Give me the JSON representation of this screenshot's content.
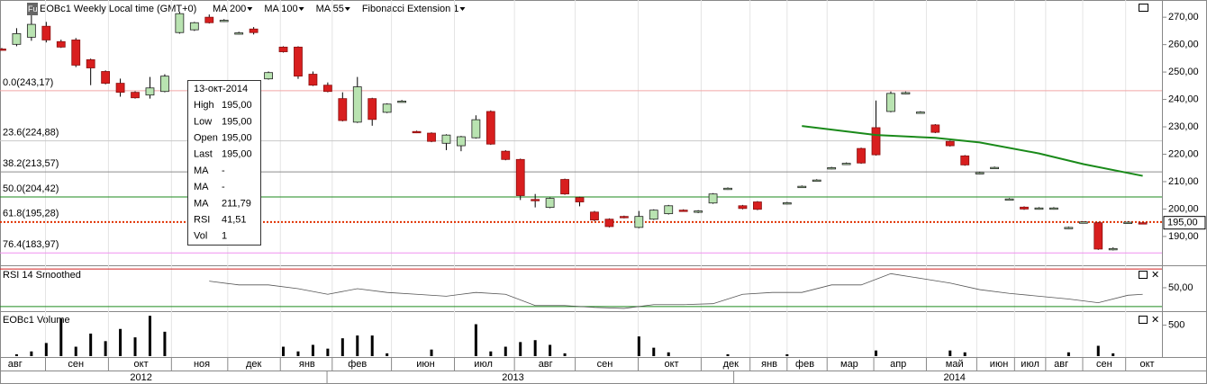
{
  "chart_data": {
    "type": "candlestick",
    "badge": "Fu",
    "title": "EOBc1 Weekly Local time (GMT+0)",
    "indicators": [
      {
        "name": "MA 200",
        "color": "#1a3fd0"
      },
      {
        "name": "MA 100",
        "color": "#d02020"
      },
      {
        "name": "MA 55",
        "color": "#1a8a1a"
      },
      {
        "name": "Fibonacci Extension 1",
        "color": "#000000"
      }
    ],
    "xlim": [
      -0.12,
      78.3
    ],
    "ylim": [
      179.8,
      275.3
    ],
    "yticks": [
      {
        "value": 190,
        "label": "190,00"
      },
      {
        "value": 200,
        "label": "200,00"
      },
      {
        "value": 210,
        "label": "210,00"
      },
      {
        "value": 220,
        "label": "220,00"
      },
      {
        "value": 230,
        "label": "230,00"
      },
      {
        "value": 240,
        "label": "240,00"
      },
      {
        "value": 250,
        "label": "250,00"
      },
      {
        "value": 260,
        "label": "260,00"
      },
      {
        "value": 270,
        "label": "270,00"
      }
    ],
    "last_price": {
      "value": 195,
      "label": "195,00"
    },
    "x": [
      0,
      1,
      2,
      3,
      4,
      5,
      6,
      7,
      8,
      9,
      10,
      11,
      12,
      13,
      14,
      15,
      16,
      17,
      18,
      19,
      20,
      21,
      22,
      23,
      24,
      25,
      26,
      27,
      28,
      29,
      30,
      31,
      32,
      33,
      34,
      35,
      36,
      37,
      38,
      39,
      40,
      41,
      42,
      43,
      44,
      45,
      46,
      47,
      48,
      49,
      50,
      51,
      53,
      54,
      55,
      56,
      57,
      58,
      59,
      60,
      61,
      62,
      63,
      64,
      65,
      66,
      67,
      68,
      69,
      70,
      71,
      72,
      73,
      74,
      75,
      76,
      77
    ],
    "open": [
      258.4,
      260.1,
      262.7,
      266.7,
      261.1,
      261.7,
      254.5,
      250.2,
      245.9,
      242.6,
      241.6,
      242.9,
      264.4,
      265.4,
      270.0,
      268.5,
      264.0,
      265.7,
      247.5,
      259.1,
      259.1,
      249.2,
      245.2,
      240.3,
      231.7,
      240.3,
      235.3,
      239.1,
      228.3,
      227.7,
      224.0,
      223.1,
      226.0,
      235.6,
      221.1,
      218.1,
      203.5,
      200.6,
      210.8,
      204.2,
      198.9,
      196.3,
      197.3,
      193.3,
      196.3,
      198.3,
      199.6,
      198.8,
      202.2,
      207.3,
      201.2,
      202.6,
      202.0,
      208.0,
      210.3,
      214.8,
      216.4,
      222.1,
      229.7,
      235.6,
      242.2,
      235.1,
      230.7,
      224.7,
      219.4,
      213.0,
      214.9,
      203.4,
      200.7,
      200.1,
      200.1,
      193.0,
      195.1,
      195.0,
      185.2,
      194.9,
      195.0
    ],
    "high": [
      258.8,
      266.0,
      270.7,
      268.3,
      261.8,
      262.4,
      254.9,
      250.6,
      247.6,
      243.0,
      248.2,
      249.2,
      272.0,
      268.3,
      271.0,
      269.3,
      264.7,
      266.4,
      250.2,
      259.4,
      259.4,
      250.2,
      246.2,
      242.6,
      248.2,
      240.6,
      238.6,
      239.8,
      228.6,
      228.0,
      227.3,
      226.7,
      234.2,
      236.0,
      221.5,
      218.4,
      205.5,
      204.2,
      211.1,
      204.5,
      199.3,
      196.6,
      197.6,
      199.3,
      199.9,
      201.5,
      199.9,
      199.6,
      205.8,
      207.9,
      201.5,
      202.9,
      202.6,
      208.6,
      210.9,
      215.4,
      217.0,
      222.4,
      239.6,
      242.9,
      242.9,
      235.7,
      231.0,
      225.0,
      219.7,
      213.6,
      215.5,
      204.0,
      201.0,
      200.7,
      200.7,
      193.6,
      195.5,
      195.3,
      186.0,
      195.5,
      195.0
    ],
    "low": [
      258.0,
      259.4,
      261.4,
      260.8,
      258.8,
      251.8,
      245.2,
      245.5,
      241.0,
      240.3,
      240.3,
      242.6,
      264.0,
      265.0,
      267.7,
      268.3,
      263.7,
      263.7,
      247.2,
      257.1,
      247.5,
      244.9,
      242.6,
      232.0,
      231.4,
      230.4,
      235.0,
      238.9,
      227.7,
      224.4,
      221.5,
      221.1,
      225.7,
      223.4,
      217.8,
      203.3,
      200.6,
      200.3,
      205.2,
      201.0,
      195.6,
      193.3,
      196.6,
      193.0,
      196.0,
      198.0,
      199.0,
      198.5,
      201.9,
      207.0,
      199.9,
      199.6,
      201.7,
      207.7,
      210.0,
      214.5,
      216.1,
      216.5,
      219.5,
      235.3,
      241.9,
      234.8,
      227.7,
      222.8,
      215.8,
      212.7,
      214.6,
      203.1,
      199.7,
      199.8,
      199.8,
      192.7,
      194.9,
      185.1,
      184.9,
      194.6,
      195.0
    ],
    "close": [
      258.4,
      264.0,
      267.4,
      261.7,
      259.1,
      252.5,
      251.5,
      245.9,
      242.6,
      240.6,
      244.2,
      248.5,
      271.3,
      268.0,
      268.0,
      268.9,
      264.3,
      264.4,
      249.8,
      257.4,
      248.5,
      245.2,
      242.9,
      232.3,
      244.6,
      232.7,
      238.3,
      239.4,
      228.0,
      224.7,
      227.0,
      226.4,
      232.6,
      223.7,
      218.1,
      204.9,
      203.2,
      203.9,
      205.5,
      202.6,
      196.0,
      193.6,
      197.0,
      197.3,
      199.6,
      201.2,
      199.3,
      199.3,
      205.5,
      207.6,
      200.2,
      199.9,
      202.3,
      208.3,
      210.6,
      215.1,
      216.7,
      216.8,
      219.8,
      242.2,
      242.5,
      235.4,
      228.0,
      223.1,
      216.1,
      213.3,
      215.2,
      203.7,
      200.0,
      200.4,
      200.4,
      193.3,
      195.3,
      185.4,
      185.6,
      195.2,
      195.0
    ],
    "up_color": "#b9e3b1",
    "down_color": "#d81e1e",
    "ma55": {
      "color": "#1a8a1a",
      "x": [
        54,
        59,
        63,
        66,
        70,
        73,
        77
      ],
      "values": [
        230.3,
        227.0,
        226.0,
        224.3,
        220.3,
        216.4,
        212.1
      ]
    },
    "fibonacci": [
      {
        "label": "0.0(243,17)",
        "value": 243.17,
        "color": "#e04848",
        "line": "#f2a8a8"
      },
      {
        "label": "23.6(224,88)",
        "value": 224.88,
        "color": "#b07a7a",
        "line": "#c8c8c8"
      },
      {
        "label": "38.2(213,57)",
        "value": 213.57,
        "color": "#000000",
        "line": "#8c8c8c"
      },
      {
        "label": "50.0(204,42)",
        "value": 204.42,
        "color": "#1e8a1e",
        "line": "#1e8a1e"
      },
      {
        "label": "61.8(195,28)",
        "value": 195.28,
        "color": "#e09a20",
        "line": "#e03000"
      },
      {
        "label": "76.4(183,97)",
        "value": 183.97,
        "color": "#c020c0",
        "line": "#f090f0"
      }
    ],
    "tooltip": {
      "date": "13-окт-2014",
      "rows": [
        {
          "label": "High",
          "value": "195,00",
          "color": "#000000"
        },
        {
          "label": "Low",
          "value": "195,00",
          "color": "#000000"
        },
        {
          "label": "Open",
          "value": "195,00",
          "color": "#000000"
        },
        {
          "label": "Last",
          "value": "195,00",
          "color": "#000000"
        },
        {
          "label": "MA",
          "value": "-",
          "color": "#1a3fd0"
        },
        {
          "label": "MA",
          "value": "-",
          "color": "#d02020"
        },
        {
          "label": "MA",
          "value": "211,79",
          "color": "#1a8a1a"
        },
        {
          "label": "RSI",
          "value": "41,51",
          "color": "#000000"
        },
        {
          "label": "Vol",
          "value": "1",
          "color": "#000000"
        }
      ]
    },
    "rsi": {
      "title": "RSI 14 Smoothed",
      "ylim": [
        26,
        72
      ],
      "yticks": [
        {
          "value": 50,
          "label": "50,00"
        }
      ],
      "levels": [
        30,
        70
      ],
      "x": [
        14,
        16,
        18,
        20,
        22,
        24,
        26,
        28,
        30,
        32,
        34,
        36,
        38,
        40,
        42,
        44,
        46,
        48,
        50,
        52,
        54,
        56,
        58,
        60,
        62,
        64,
        66,
        68,
        70,
        72,
        74,
        76,
        77
      ],
      "values": [
        57,
        53,
        53,
        49,
        43,
        49,
        45,
        43,
        41,
        45,
        43,
        31,
        31,
        29,
        28,
        32,
        32,
        33,
        43,
        45,
        45,
        53,
        53,
        65,
        60,
        55,
        48,
        44,
        41,
        38,
        34,
        42,
        43
      ]
    },
    "volume": {
      "title": "EOBc1 Volume",
      "ylim": [
        0,
        697
      ],
      "yticks": [
        500
      ],
      "x": [
        1,
        2,
        3,
        4,
        5,
        6,
        7,
        8,
        9,
        10,
        11,
        19,
        20,
        21,
        22,
        23,
        24,
        25,
        26,
        29,
        32,
        33,
        34,
        35,
        36,
        37,
        38,
        43,
        44,
        45,
        49,
        53,
        59,
        64,
        65,
        72,
        74,
        75
      ],
      "values": [
        30,
        76,
        212,
        606,
        152,
        364,
        242,
        439,
        303,
        651,
        394,
        152,
        76,
        182,
        121,
        288,
        333,
        333,
        45,
        106,
        515,
        76,
        152,
        227,
        258,
        182,
        45,
        318,
        136,
        61,
        30,
        30,
        91,
        91,
        61,
        61,
        167,
        45
      ]
    },
    "xticks": [
      {
        "value": 0.9,
        "label": "авг"
      },
      {
        "value": 5.0,
        "label": "сен"
      },
      {
        "value": 9.4,
        "label": "окт"
      },
      {
        "value": 13.5,
        "label": "ноя"
      },
      {
        "value": 17.0,
        "label": "дек"
      },
      {
        "value": 20.6,
        "label": "янв"
      },
      {
        "value": 24.0,
        "label": "фев"
      },
      {
        "value": 28.6,
        "label": "июн"
      },
      {
        "value": 32.5,
        "label": "июл"
      },
      {
        "value": 36.7,
        "label": "авг"
      },
      {
        "value": 40.7,
        "label": "сен"
      },
      {
        "value": 45.2,
        "label": "окт"
      },
      {
        "value": 49.2,
        "label": "дек"
      },
      {
        "value": 51.8,
        "label": "янв"
      },
      {
        "value": 54.2,
        "label": "фев"
      },
      {
        "value": 57.2,
        "label": "мар"
      },
      {
        "value": 60.5,
        "label": "апр"
      },
      {
        "value": 64.3,
        "label": "май"
      },
      {
        "value": 67.3,
        "label": "июн"
      },
      {
        "value": 69.4,
        "label": "июл"
      },
      {
        "value": 71.5,
        "label": "авг"
      },
      {
        "value": 74.4,
        "label": "сен"
      },
      {
        "value": 77.3,
        "label": "окт"
      }
    ],
    "years": [
      {
        "value": 9.4,
        "label": "2012"
      },
      {
        "value": 34.5,
        "label": "2013"
      },
      {
        "value": 64.3,
        "label": "2014"
      }
    ]
  }
}
